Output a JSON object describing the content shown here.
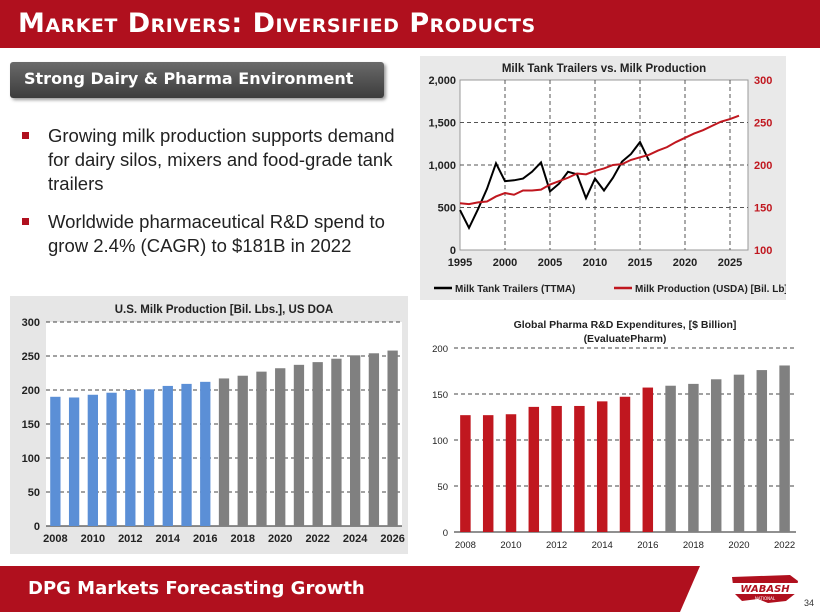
{
  "title": "Market Drivers: Diversified Products",
  "section_label": "Strong Dairy & Pharma Environment",
  "bullets": [
    "Growing milk production supports demand for dairy silos, mixers and food-grade tank trailers",
    "Worldwide pharmaceutical R&D spend to grow 2.4% (CAGR) to $181B in 2022"
  ],
  "footer": "DPG Markets Forecasting Growth",
  "page_number": "34",
  "logo_text": "WABASH",
  "logo_subtext": "NATIONAL",
  "colors": {
    "brand_red": "#b0101e",
    "bar_blue": "#5b8fd6",
    "bar_gray": "#808080",
    "line_red": "#c0171f"
  },
  "chart_data": [
    {
      "type": "line",
      "title": "Milk Tank Trailers vs. Milk Production",
      "x_ticks": [
        "1995",
        "2000",
        "2005",
        "2010",
        "2015",
        "2020",
        "2025"
      ],
      "xlim": [
        1995,
        2027
      ],
      "ylim": [
        0,
        2000
      ],
      "y_ticks": [
        "0",
        "500",
        "1,000",
        "1,500",
        "2,000"
      ],
      "y2lim": [
        100,
        300
      ],
      "y2_ticks": [
        "100",
        "150",
        "200",
        "250",
        "300"
      ],
      "grid": true,
      "legend_position": "bottom",
      "series": [
        {
          "name": "Milk Tank Trailers (TTMA)",
          "axis": "left",
          "color": "#000000",
          "x": [
            1995,
            1996,
            1997,
            1998,
            1999,
            2000,
            2001,
            2002,
            2003,
            2004,
            2005,
            2006,
            2007,
            2008,
            2009,
            2010,
            2011,
            2012,
            2013,
            2014,
            2015,
            2016
          ],
          "y": [
            470,
            260,
            480,
            720,
            1020,
            810,
            820,
            840,
            920,
            1030,
            690,
            780,
            920,
            890,
            610,
            840,
            700,
            850,
            1040,
            1130,
            1270,
            1050
          ]
        },
        {
          "name": "Milk Production (USDA) [Bil. Lb]",
          "axis": "right",
          "color": "#c0171f",
          "x": [
            1995,
            1996,
            1997,
            1998,
            1999,
            2000,
            2001,
            2002,
            2003,
            2004,
            2005,
            2006,
            2007,
            2008,
            2009,
            2010,
            2011,
            2012,
            2013,
            2014,
            2015,
            2016,
            2017,
            2018,
            2019,
            2020,
            2021,
            2022,
            2023,
            2024,
            2025,
            2026
          ],
          "y": [
            155,
            154,
            156,
            157,
            163,
            167,
            165,
            170,
            170,
            171,
            177,
            181,
            185,
            190,
            189,
            193,
            196,
            200,
            201,
            206,
            209,
            212,
            217,
            221,
            227,
            232,
            237,
            241,
            246,
            251,
            254,
            258
          ]
        }
      ]
    },
    {
      "type": "bar",
      "title": "U.S. Milk Production [Bil. Lbs.], US DOA",
      "categories": [
        "2008",
        "2009",
        "2010",
        "2011",
        "2012",
        "2013",
        "2014",
        "2015",
        "2016",
        "2017",
        "2018",
        "2019",
        "2020",
        "2021",
        "2022",
        "2023",
        "2024",
        "2025",
        "2026"
      ],
      "x_tick_labels": [
        "2008",
        "2010",
        "2012",
        "2014",
        "2016",
        "2018",
        "2020",
        "2022",
        "2024",
        "2026"
      ],
      "values": [
        190,
        189,
        193,
        196,
        200,
        201,
        206,
        209,
        212,
        217,
        221,
        227,
        232,
        237,
        241,
        246,
        251,
        254,
        258
      ],
      "actual_count": 9,
      "ylim": [
        0,
        300
      ],
      "y_ticks": [
        "0",
        "50",
        "100",
        "150",
        "200",
        "250",
        "300"
      ],
      "grid": true
    },
    {
      "type": "bar",
      "title": "Global Pharma R&D Expenditures, [$ Billion]",
      "subtitle": "(EvaluatePharm)",
      "categories": [
        "2008",
        "2009",
        "2010",
        "2011",
        "2012",
        "2013",
        "2014",
        "2015",
        "2016",
        "2017",
        "2018",
        "2019",
        "2020",
        "2021",
        "2022"
      ],
      "x_tick_labels": [
        "2008",
        "2010",
        "2012",
        "2014",
        "2016",
        "2018",
        "2020",
        "2022"
      ],
      "values": [
        127,
        127,
        128,
        136,
        137,
        137,
        142,
        147,
        157,
        159,
        161,
        166,
        171,
        176,
        181
      ],
      "actual_count": 9,
      "ylim": [
        0,
        200
      ],
      "y_ticks": [
        "0",
        "50",
        "100",
        "150",
        "200"
      ],
      "grid": true
    }
  ]
}
